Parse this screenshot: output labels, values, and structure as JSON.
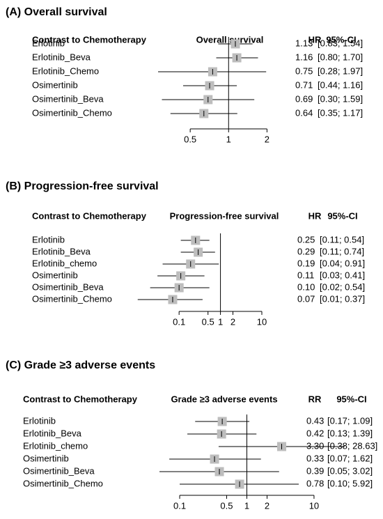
{
  "chart_data": [
    {
      "type": "forest",
      "title": "(A) Overall survival",
      "label_header": "Contrast to Chemotherapy",
      "plot_header": "Overall survival",
      "effect_header": "HR",
      "ci_header": "95%-CI",
      "categories": [
        "Erlotinib",
        "Erlotinib_Beva",
        "Erlotinib_Chemo",
        "Osimertinib",
        "Osimertinib_Beva",
        "Osimertinib_Chemo"
      ],
      "values": [
        1.13,
        1.16,
        0.75,
        0.71,
        0.69,
        0.64
      ],
      "value_labels": [
        "1.13",
        "1.16",
        "0.75",
        "0.71",
        "0.69",
        "0.64"
      ],
      "lower": [
        0.83,
        0.8,
        0.28,
        0.44,
        0.3,
        0.35
      ],
      "upper": [
        1.54,
        1.7,
        1.97,
        1.16,
        1.59,
        1.17
      ],
      "ci_labels": [
        "[0.83; 1.54]",
        "[0.80; 1.70]",
        "[0.28; 1.97]",
        "[0.44; 1.16]",
        "[0.30; 1.59]",
        "[0.35; 1.17]"
      ],
      "log_x": true,
      "reference": 1,
      "color": "#bdbdbd",
      "xlim": [
        0.25,
        2.2
      ],
      "xticks": [
        0.5,
        1,
        2
      ]
    },
    {
      "type": "forest",
      "title": "(B) Progression-free survival",
      "label_header": "Contrast to Chemotherapy",
      "plot_header": "Progression-free survival",
      "effect_header": "HR",
      "ci_header": "95%-CI",
      "categories": [
        "Erlotinib",
        "Erlotinib_Beva",
        "Erlotinib_chemo",
        "Osimertinib",
        "Osimertinib_Beva",
        "Osimertinib_Chemo"
      ],
      "values": [
        0.25,
        0.29,
        0.19,
        0.11,
        0.1,
        0.07
      ],
      "value_labels": [
        "0.25",
        "0.29",
        "0.19",
        "0.11",
        "0.10",
        "0.07"
      ],
      "lower": [
        0.11,
        0.11,
        0.04,
        0.03,
        0.02,
        0.01
      ],
      "upper": [
        0.54,
        0.74,
        0.91,
        0.41,
        0.54,
        0.37
      ],
      "ci_labels": [
        "[0.11; 0.54]",
        "[0.11; 0.74]",
        "[0.04; 0.91]",
        "[0.03; 0.41]",
        "[0.02; 0.54]",
        "[0.01; 0.37]"
      ],
      "log_x": true,
      "reference": 1,
      "color": "#bdbdbd",
      "xlim": [
        0.008,
        10
      ],
      "xticks": [
        0.1,
        0.5,
        1,
        2,
        10
      ]
    },
    {
      "type": "forest",
      "title": "(C) Grade ≥3 adverse events",
      "label_header": "Contrast to Chemotherapy",
      "plot_header": "Grade ≥3 adverse events",
      "effect_header": "RR",
      "ci_header": "95%-CI",
      "categories": [
        "Erlotinib",
        "Erlotinib_Beva",
        "Erlotinib_chemo",
        "Osimertinib",
        "Osimertinib_Beva",
        "Osimertinib_Chemo"
      ],
      "values": [
        0.43,
        0.42,
        3.3,
        0.33,
        0.39,
        0.78
      ],
      "value_labels": [
        "0.43",
        "0.42",
        "3.30",
        "0.33",
        "0.39",
        "0.78"
      ],
      "lower": [
        0.17,
        0.13,
        0.38,
        0.07,
        0.05,
        0.1
      ],
      "upper": [
        1.09,
        1.39,
        28.63,
        1.62,
        3.02,
        5.92
      ],
      "ci_labels": [
        "[0.17; 1.09]",
        "[0.13; 1.39]",
        "[0.38; 28.63]",
        "[0.07; 1.62]",
        "[0.05; 3.02]",
        "[0.10; 5.92]"
      ],
      "log_x": true,
      "reference": 1,
      "color": "#bdbdbd",
      "xlim": [
        0.05,
        28.63
      ],
      "xticks": [
        0.1,
        0.5,
        1,
        2,
        10
      ]
    }
  ]
}
